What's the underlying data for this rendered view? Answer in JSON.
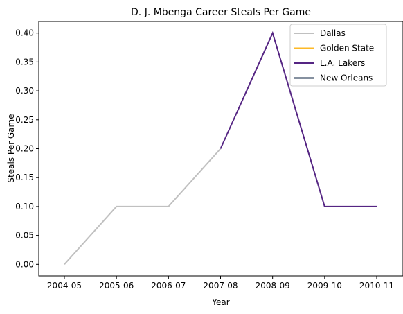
{
  "chart_data": {
    "type": "line",
    "title": "D. J. Mbenga Career Steals Per Game",
    "xlabel": "Year",
    "ylabel": "Steals Per Game",
    "categories": [
      "2004-05",
      "2005-06",
      "2006-07",
      "2007-08",
      "2008-09",
      "2009-10",
      "2010-11"
    ],
    "ylim": [
      -0.02,
      0.42
    ],
    "yticks": [
      0.0,
      0.05,
      0.1,
      0.15,
      0.2,
      0.25,
      0.3,
      0.35,
      0.4
    ],
    "ytick_labels": [
      "0.00",
      "0.05",
      "0.10",
      "0.15",
      "0.20",
      "0.25",
      "0.30",
      "0.35",
      "0.40"
    ],
    "grid": false,
    "legend_position": "top-right",
    "series": [
      {
        "name": "Dallas",
        "color": "#c0c0c0",
        "values": [
          0.0,
          0.1,
          0.1,
          0.2,
          null,
          null,
          null
        ]
      },
      {
        "name": "Golden State",
        "color": "#fdb927",
        "values": [
          null,
          null,
          null,
          null,
          null,
          null,
          null
        ]
      },
      {
        "name": "L.A. Lakers",
        "color": "#552583",
        "values": [
          null,
          null,
          null,
          0.2,
          0.4,
          0.1,
          0.1
        ]
      },
      {
        "name": "New Orleans",
        "color": "#0c2340",
        "values": [
          null,
          null,
          null,
          null,
          null,
          null,
          null
        ]
      }
    ]
  }
}
